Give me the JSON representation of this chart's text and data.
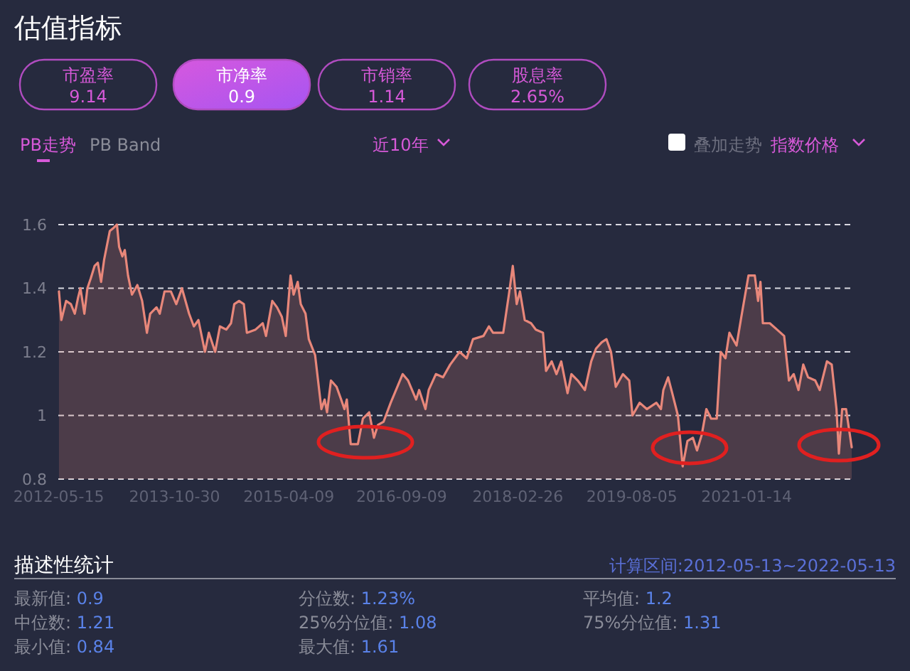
{
  "chart_data": {
    "type": "area",
    "title": "估值指标",
    "annotations": [
      "市盈率",
      "9.14",
      "市净率",
      "0.9",
      "市销率",
      "1.14",
      "股息率",
      "2.65%",
      "PB走势",
      "PB Band",
      "近10年",
      "叠加走势",
      "指数价格",
      "描述性统计",
      "计算区间:2012-05-13~2022-05-13",
      "最新值: ",
      "0.9",
      "分位数: ",
      "1.23%",
      "平均值: ",
      "1.2",
      "中位数: ",
      "1.21",
      "25%分位值: ",
      "1.08",
      "75%分位值: ",
      "1.31",
      "最小值: ",
      "0.84",
      "最大值: ",
      "1.61"
    ],
    "x": [
      "2012-05-16",
      "2012-05-27",
      "2012-06-18",
      "2012-07-10",
      "2012-07-28",
      "2012-08-12",
      "2012-08-23",
      "2012-09-10",
      "2012-09-24",
      "2012-10-09",
      "2012-10-27",
      "2012-11-11",
      "2012-11-26",
      "2012-12-10",
      "2013-01-05",
      "2013-01-23",
      "2013-02-07",
      "2013-02-17",
      "2013-03-04",
      "2013-03-15",
      "2013-03-30",
      "2013-04-17",
      "2013-05-12",
      "2013-06-03",
      "2013-06-25",
      "2013-07-10",
      "2013-08-08",
      "2013-08-23",
      "2013-09-14",
      "2013-10-13",
      "2013-11-07",
      "2013-12-03",
      "2014-01-05",
      "2014-01-27",
      "2014-02-17",
      "2014-03-19",
      "2014-04-06",
      "2014-05-05",
      "2014-05-27",
      "2014-06-25",
      "2014-07-17",
      "2014-08-01",
      "2014-08-23",
      "2014-09-14",
      "2014-09-28",
      "2014-11-07",
      "2014-12-10",
      "2014-12-25",
      "2015-01-23",
      "2015-02-14",
      "2015-03-08",
      "2015-03-26",
      "2015-04-17",
      "2015-05-01",
      "2015-05-20",
      "2015-06-03",
      "2015-06-25",
      "2015-07-10",
      "2015-08-08",
      "2015-09-06",
      "2015-09-21",
      "2015-10-02",
      "2015-10-20",
      "2015-11-15",
      "2015-12-06",
      "2015-12-21",
      "2016-01-01",
      "2016-01-19",
      "2016-02-21",
      "2016-03-15",
      "2016-04-13",
      "2016-05-05",
      "2016-05-23",
      "2016-06-18",
      "2016-07-21",
      "2016-09-14",
      "2016-10-09",
      "2016-11-15",
      "2016-11-29",
      "2016-12-28",
      "2017-01-12",
      "2017-02-14",
      "2017-03-19",
      "2017-04-21",
      "2017-06-03",
      "2017-07-06",
      "2017-08-04",
      "2017-09-21",
      "2017-10-16",
      "2017-11-04",
      "2017-12-21",
      "2018-01-16",
      "2018-02-03",
      "2018-02-21",
      "2018-03-08",
      "2018-03-30",
      "2018-04-28",
      "2018-05-20",
      "2018-06-22",
      "2018-07-06",
      "2018-08-01",
      "2018-08-23",
      "2018-09-14",
      "2018-10-13",
      "2018-10-31",
      "2018-11-29",
      "2019-01-01",
      "2019-01-30",
      "2019-02-21",
      "2019-03-19",
      "2019-04-10",
      "2019-05-01",
      "2019-05-23",
      "2019-06-25",
      "2019-07-24",
      "2019-08-08",
      "2019-09-10",
      "2019-10-13",
      "2019-11-26",
      "2019-12-17",
      "2019-12-28",
      "2020-01-19",
      "2020-02-07",
      "2020-03-04",
      "2020-03-26",
      "2020-04-17",
      "2020-05-12",
      "2020-05-31",
      "2020-06-22",
      "2020-07-13",
      "2020-08-04",
      "2020-08-30",
      "2020-09-17",
      "2020-10-09",
      "2020-10-27",
      "2020-11-29",
      "2020-12-21",
      "2021-01-23",
      "2021-02-21",
      "2021-03-08",
      "2021-03-19",
      "2021-03-30",
      "2021-05-01",
      "2021-06-03",
      "2021-07-06",
      "2021-07-28",
      "2021-08-19",
      "2021-09-10",
      "2021-10-02",
      "2021-10-24",
      "2021-11-26",
      "2021-12-17",
      "2022-01-19",
      "2022-02-10",
      "2022-03-04",
      "2022-03-15",
      "2022-03-30",
      "2022-04-17",
      "2022-05-13"
    ],
    "values": [
      1.39,
      1.3,
      1.36,
      1.35,
      1.32,
      1.37,
      1.4,
      1.32,
      1.4,
      1.43,
      1.47,
      1.48,
      1.42,
      1.49,
      1.58,
      1.59,
      1.6,
      1.53,
      1.5,
      1.52,
      1.44,
      1.38,
      1.41,
      1.36,
      1.26,
      1.32,
      1.34,
      1.32,
      1.39,
      1.39,
      1.35,
      1.4,
      1.32,
      1.28,
      1.3,
      1.2,
      1.26,
      1.2,
      1.28,
      1.27,
      1.29,
      1.35,
      1.36,
      1.35,
      1.26,
      1.27,
      1.29,
      1.25,
      1.36,
      1.34,
      1.31,
      1.25,
      1.44,
      1.38,
      1.42,
      1.35,
      1.32,
      1.24,
      1.19,
      1.02,
      1.05,
      1.01,
      1.11,
      1.09,
      1.05,
      1.02,
      1.05,
      0.91,
      0.91,
      0.99,
      1.01,
      0.93,
      0.97,
      0.98,
      1.04,
      1.13,
      1.11,
      1.05,
      1.08,
      1.02,
      1.08,
      1.13,
      1.12,
      1.16,
      1.2,
      1.18,
      1.24,
      1.25,
      1.28,
      1.26,
      1.26,
      1.38,
      1.47,
      1.35,
      1.39,
      1.3,
      1.29,
      1.27,
      1.26,
      1.14,
      1.17,
      1.13,
      1.17,
      1.07,
      1.13,
      1.11,
      1.08,
      1.17,
      1.21,
      1.23,
      1.24,
      1.2,
      1.09,
      1.13,
      1.11,
      1.0,
      1.04,
      1.02,
      1.04,
      1.02,
      1.08,
      1.12,
      1.07,
      1.0,
      0.84,
      0.92,
      0.93,
      0.89,
      0.94,
      1.02,
      0.99,
      0.99,
      1.2,
      1.18,
      1.26,
      1.22,
      1.31,
      1.44,
      1.44,
      1.36,
      1.42,
      1.29,
      1.29,
      1.27,
      1.25,
      1.11,
      1.13,
      1.08,
      1.16,
      1.12,
      1.11,
      1.08,
      1.17,
      1.16,
      1.02,
      0.88,
      1.02,
      1.02,
      0.9
    ],
    "color": "#e8877a",
    "xlim": [
      "2012-05-13",
      "2022-05-13"
    ],
    "xticks": [
      "2012-05-15",
      "2013-10-30",
      "2015-04-09",
      "2016-09-09",
      "2018-02-26",
      "2019-08-05",
      "2021-01-14"
    ],
    "ylim": [
      0.8,
      1.6
    ],
    "yticks": [
      0.8,
      1,
      1.2,
      1.4,
      1.6
    ],
    "grid": "y",
    "line_style": "solid",
    "marker": "none"
  }
}
